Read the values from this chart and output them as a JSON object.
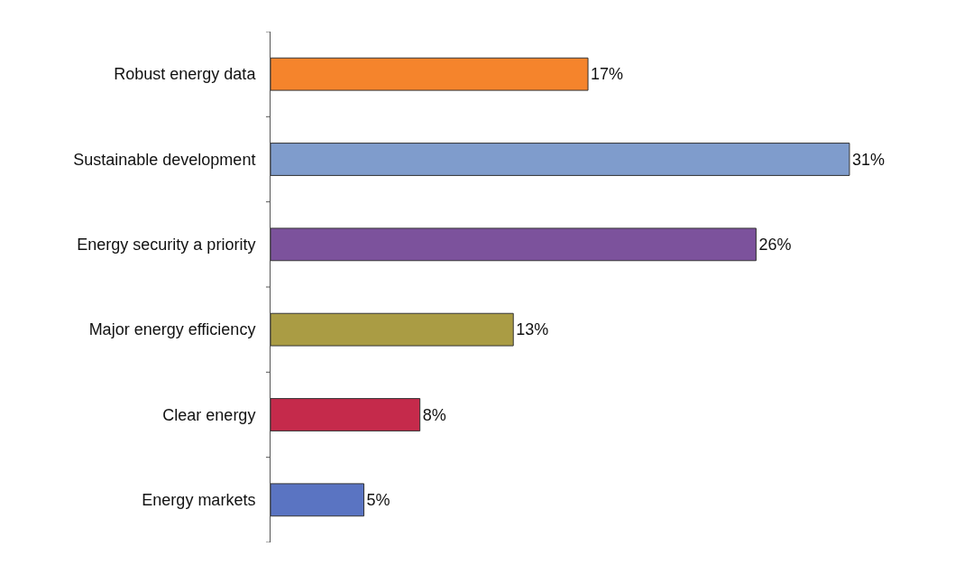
{
  "chart_data": {
    "type": "bar",
    "orientation": "horizontal",
    "categories": [
      "Robust energy data",
      "Sustainable development",
      "Energy security a priority",
      "Major energy efficiency",
      "Clear energy",
      "Energy markets"
    ],
    "values": [
      17,
      31,
      26,
      13,
      8,
      5
    ],
    "colors": [
      "#f5842c",
      "#7f9ccc",
      "#7c529c",
      "#aa9c44",
      "#c52a4b",
      "#5a74c2"
    ],
    "value_labels": [
      "17%",
      "31%",
      "26%",
      "13%",
      "8%",
      "5%"
    ]
  }
}
